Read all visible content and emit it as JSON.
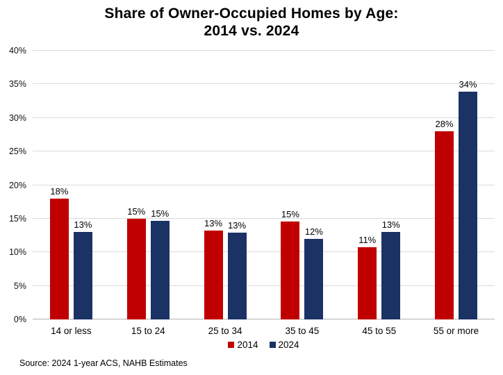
{
  "header": {
    "title": "Share of Owner-Occupied Homes by Age:\n2014 vs. 2024"
  },
  "source_note": "Source: 2024 1-year ACS, NAHB Estimates",
  "colors": {
    "series_2014": "#C00000",
    "series_2024": "#1B3264",
    "gridline": "#D9D9D9",
    "axis_line": "#B3B3B3",
    "text": "#000000",
    "background": "#FFFFFF"
  },
  "chart_data": {
    "type": "bar",
    "title": "Share of Owner-Occupied Homes by Age: 2014 vs. 2024",
    "categories": [
      "14 or less",
      "15 to 24",
      "25 to 34",
      "35 to 45",
      "45 to 55",
      "55 or more"
    ],
    "series": [
      {
        "name": "2014",
        "color": "#C00000",
        "values": [
          18.0,
          15.0,
          13.2,
          14.6,
          10.7,
          28.0
        ],
        "labels": [
          "18%",
          "15%",
          "13%",
          "15%",
          "11%",
          "28%"
        ]
      },
      {
        "name": "2024",
        "color": "#1B3264",
        "values": [
          13.0,
          14.7,
          12.9,
          12.0,
          13.0,
          33.9
        ],
        "labels": [
          "13%",
          "15%",
          "13%",
          "12%",
          "13%",
          "34%"
        ]
      }
    ],
    "xlabel": "",
    "ylabel": "",
    "ylim": [
      0,
      40
    ],
    "ytick_step": 5,
    "ytick_labels": [
      "0%",
      "5%",
      "10%",
      "15%",
      "20%",
      "25%",
      "30%",
      "35%",
      "40%"
    ],
    "grid": true,
    "legend_position": "bottom-center"
  }
}
